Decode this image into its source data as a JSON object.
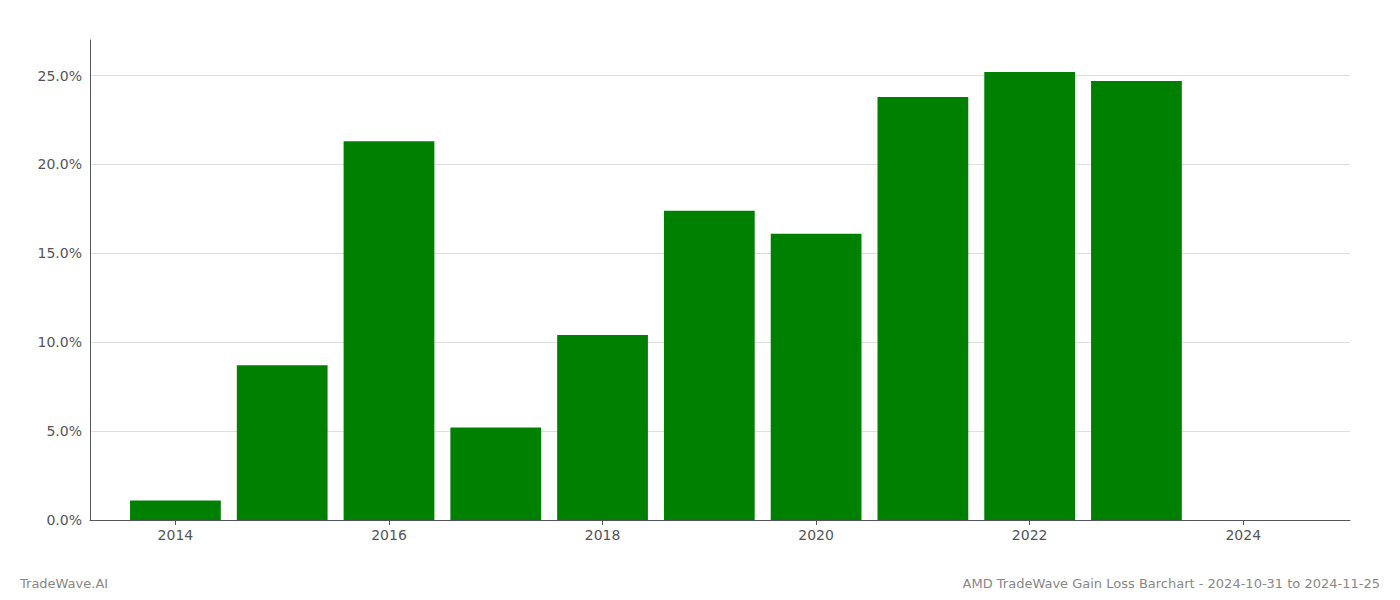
{
  "chart_data": {
    "type": "bar",
    "x": [
      2014,
      2015,
      2016,
      2017,
      2018,
      2019,
      2020,
      2021,
      2022,
      2023
    ],
    "values": [
      0.011,
      0.087,
      0.213,
      0.052,
      0.104,
      0.174,
      0.161,
      0.238,
      0.252,
      0.247
    ],
    "color": "#008000",
    "xlim": [
      2013.2,
      2025.0
    ],
    "xticks": [
      2014,
      2016,
      2018,
      2020,
      2022,
      2024
    ],
    "ylim": [
      0,
      0.27
    ],
    "yticks": [
      {
        "value": 0.0,
        "label": "0.0%"
      },
      {
        "value": 0.05,
        "label": "5.0%"
      },
      {
        "value": 0.1,
        "label": "10.0%"
      },
      {
        "value": 0.15,
        "label": "15.0%"
      },
      {
        "value": 0.2,
        "label": "20.0%"
      },
      {
        "value": 0.25,
        "label": "25.0%"
      }
    ],
    "grid": true,
    "annotations": [
      "TradeWave.AI",
      "AMD TradeWave Gain Loss Barchart - 2024-10-31 to 2024-11-25"
    ]
  }
}
